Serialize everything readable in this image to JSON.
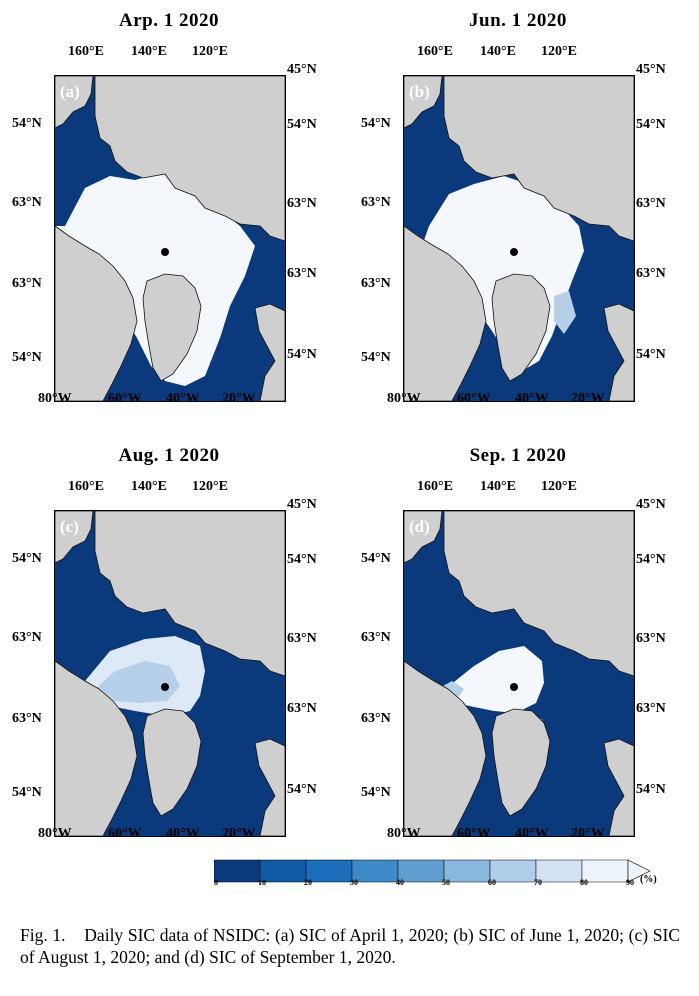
{
  "panels": [
    {
      "id": "a",
      "title": "Arp. 1  2020",
      "label": "(a)",
      "ice_state": "winter-max"
    },
    {
      "id": "b",
      "title": "Jun. 1  2020",
      "label": "(b)",
      "ice_state": "early-summer"
    },
    {
      "id": "c",
      "title": "Aug. 1  2020",
      "label": "(c)",
      "ice_state": "late-summer"
    },
    {
      "id": "d",
      "title": "Sep. 1  2020",
      "label": "(d)",
      "ice_state": "minimum"
    }
  ],
  "axes": {
    "top_lon": [
      "160°E",
      "140°E",
      "120°E"
    ],
    "bottom_lon": [
      "80°W",
      "60°W",
      "40°W",
      "20°W"
    ],
    "left_lat": [
      "54°N",
      "63°N",
      "63°N",
      "54°N"
    ],
    "right_lat": [
      "45°N",
      "54°N",
      "63°N",
      "63°N",
      "54°N"
    ]
  },
  "colorbar": {
    "ticks": [
      "0",
      "10",
      "20",
      "30",
      "40",
      "50",
      "60",
      "70",
      "80",
      "90"
    ],
    "unit": "(%)",
    "colors": [
      "#0b3a7c",
      "#135aa5",
      "#1c6ebb",
      "#3e8ac6",
      "#629fd1",
      "#8ab7dd",
      "#b0cde9",
      "#d3e2f2",
      "#eef4fb"
    ]
  },
  "colors": {
    "ocean": "#0b3a7c",
    "land": "#cfcfcf",
    "coast": "#111111",
    "ice_full": "#f4f8fd",
    "ice_high": "#dde9f6",
    "ice_mid": "#b7d0ea",
    "ice_low": "#6ea5d6",
    "pole": "#000000"
  },
  "caption": {
    "prefix": "Fig. 1.",
    "text": "Daily SIC data of NSIDC: (a) SIC of April 1, 2020; (b) SIC of June 1, 2020; (c) SIC of August 1, 2020; and (d) SIC of September 1, 2020."
  }
}
